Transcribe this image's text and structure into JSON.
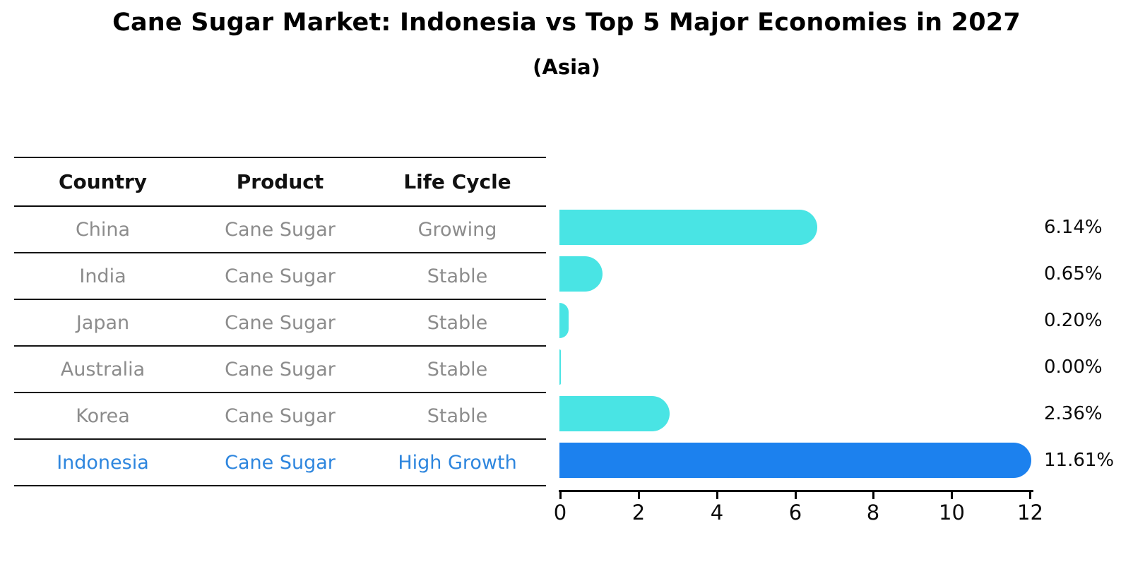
{
  "title": "Cane Sugar Market: Indonesia vs Top 5 Major Economies in 2027",
  "subtitle": "(Asia)",
  "table": {
    "headers": [
      "Country",
      "Product",
      "Life Cycle"
    ],
    "rows": [
      {
        "country": "China",
        "product": "Cane Sugar",
        "life_cycle": "Growing"
      },
      {
        "country": "India",
        "product": "Cane Sugar",
        "life_cycle": "Stable"
      },
      {
        "country": "Japan",
        "product": "Cane Sugar",
        "life_cycle": "Stable"
      },
      {
        "country": "Australia",
        "product": "Cane Sugar",
        "life_cycle": "Stable"
      },
      {
        "country": "Korea",
        "product": "Cane Sugar",
        "life_cycle": "Stable"
      },
      {
        "country": "Indonesia",
        "product": "Cane Sugar",
        "life_cycle": "High Growth"
      }
    ]
  },
  "chart_data": {
    "type": "bar",
    "orientation": "horizontal",
    "title": "Cane Sugar Market: Indonesia vs Top 5 Major Economies in 2027",
    "subtitle": "(Asia)",
    "categories": [
      "China",
      "India",
      "Japan",
      "Australia",
      "Korea",
      "Indonesia"
    ],
    "values": [
      6.14,
      0.65,
      0.2,
      0.0,
      2.36,
      11.61
    ],
    "value_labels": [
      "6.14%",
      "0.65%",
      "0.20%",
      "0.00%",
      "2.36%",
      "11.61%"
    ],
    "x_ticks": [
      "0",
      "2",
      "4",
      "6",
      "8",
      "10",
      "12"
    ],
    "xlim": [
      0,
      12
    ],
    "grid": false,
    "legend": "none",
    "bar_color": "#49E4E4",
    "highlight_color": "#1C81EE",
    "highlight_category": "Indonesia",
    "highlight_border_style": "dotted"
  },
  "colors": {
    "teal_bar": "#49E4E4",
    "blue_bar": "#1C81EE",
    "highlight_text": "#2E86DE",
    "muted_text": "#8C8C8C",
    "axis": "#000000"
  }
}
